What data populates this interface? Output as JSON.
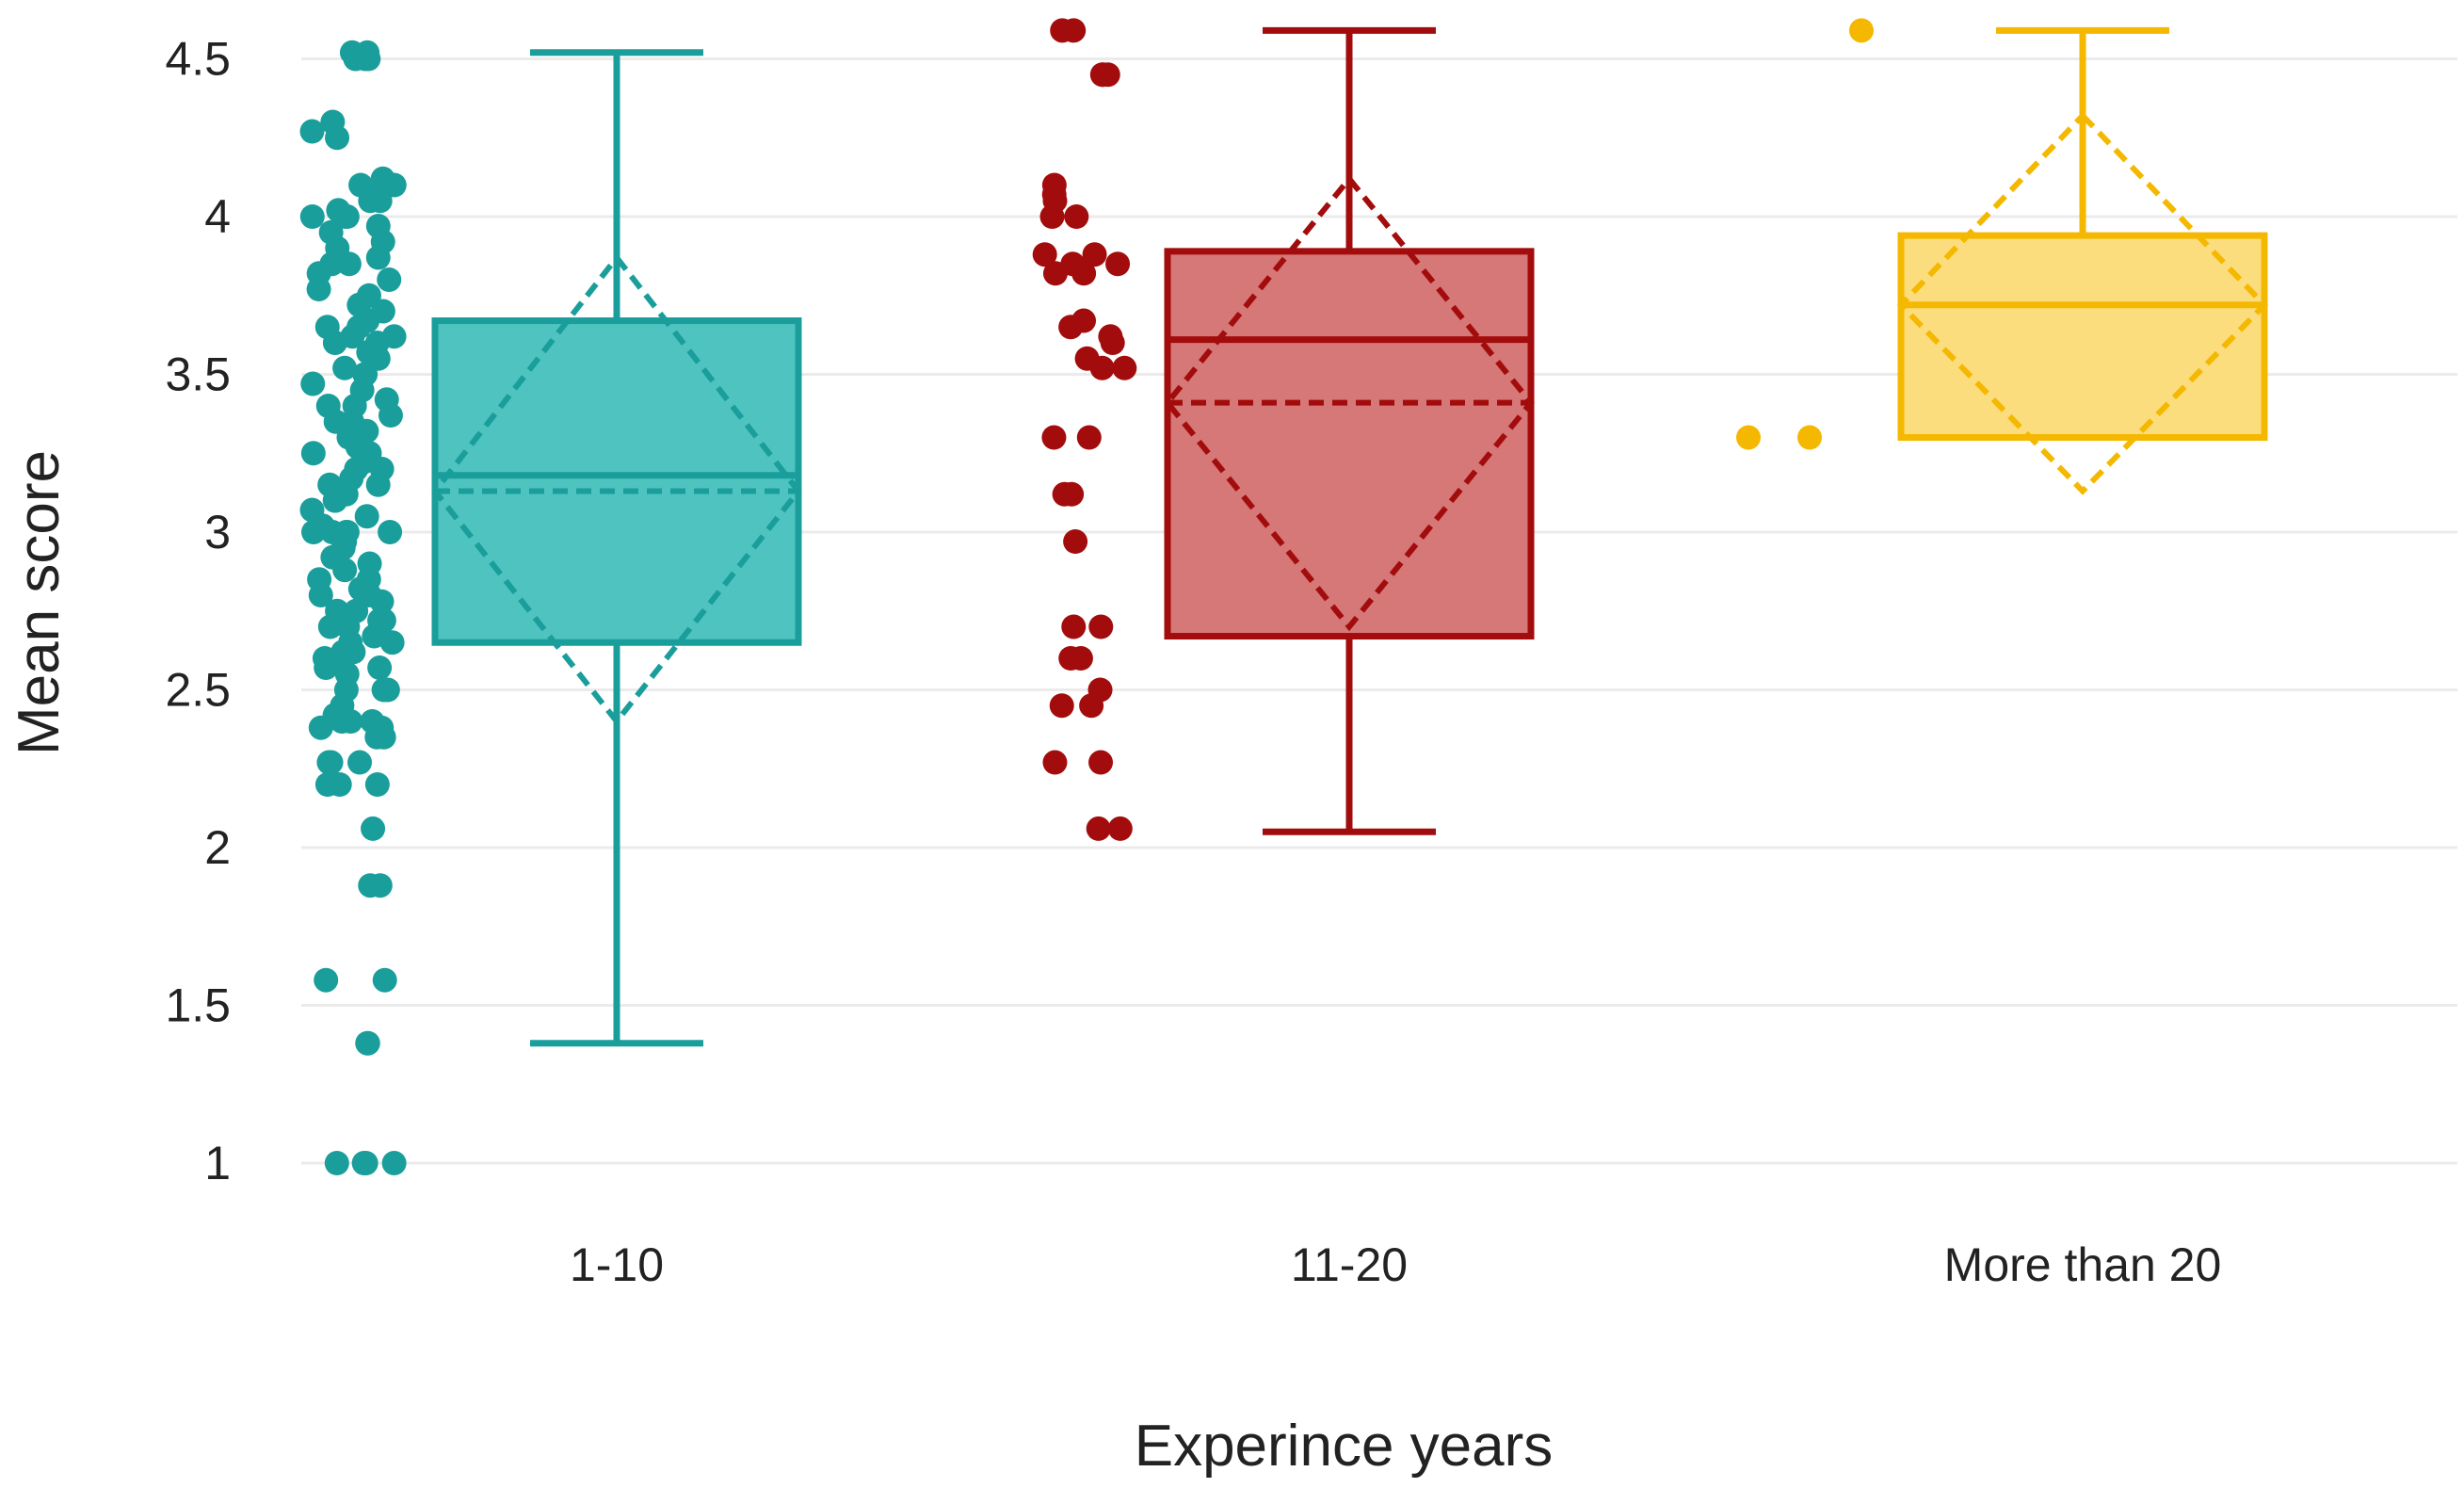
{
  "chart_data": {
    "type": "box",
    "title": "",
    "xlabel": "Experince years",
    "ylabel": "Mean score",
    "ylim": [
      0.85,
      4.6
    ],
    "yticks": [
      {
        "value": 1,
        "label": "1"
      },
      {
        "value": 1.5,
        "label": "1.5"
      },
      {
        "value": 2,
        "label": "2"
      },
      {
        "value": 2.5,
        "label": "2.5"
      },
      {
        "value": 3,
        "label": "3"
      },
      {
        "value": 3.5,
        "label": "3.5"
      },
      {
        "value": 4,
        "label": "4"
      },
      {
        "value": 4.5,
        "label": "4.5"
      }
    ],
    "grid": true,
    "legend": "none",
    "categories": [
      "1-10",
      "11-20",
      "More than 20"
    ],
    "groups": [
      {
        "name": "1-10",
        "color": "#1a9e9b",
        "fill": "#4fc3c0",
        "whisker_low": 1.38,
        "q1": 2.65,
        "median": 3.18,
        "q3": 3.67,
        "whisker_high": 4.52,
        "mean": 3.13,
        "mean_minus_sd": 2.4,
        "mean_plus_sd": 3.87,
        "points": [
          1.0,
          1.0,
          1.0,
          1.0,
          1.38,
          1.38,
          1.58,
          1.58,
          1.88,
          1.88,
          2.06,
          2.2,
          2.2,
          2.2,
          2.27,
          2.27,
          2.27,
          2.35,
          2.35,
          2.38,
          2.38,
          2.4,
          2.4,
          2.4,
          2.42,
          2.45,
          2.5,
          2.5,
          2.5,
          2.55,
          2.57,
          2.57,
          2.6,
          2.6,
          2.62,
          2.62,
          2.65,
          2.65,
          2.67,
          2.7,
          2.7,
          2.72,
          2.72,
          2.75,
          2.75,
          2.78,
          2.8,
          2.8,
          2.82,
          2.85,
          2.85,
          2.88,
          2.9,
          2.92,
          2.95,
          2.97,
          3.0,
          3.0,
          3.0,
          3.0,
          3.0,
          3.02,
          3.05,
          3.07,
          3.1,
          3.1,
          3.12,
          3.15,
          3.15,
          3.17,
          3.2,
          3.2,
          3.22,
          3.25,
          3.25,
          3.27,
          3.3,
          3.3,
          3.32,
          3.35,
          3.35,
          3.37,
          3.4,
          3.4,
          3.42,
          3.45,
          3.47,
          3.5,
          3.5,
          3.52,
          3.55,
          3.57,
          3.6,
          3.6,
          3.62,
          3.62,
          3.65,
          3.65,
          3.67,
          3.7,
          3.72,
          3.75,
          3.77,
          3.8,
          3.82,
          3.85,
          3.85,
          3.87,
          3.9,
          3.92,
          3.95,
          3.97,
          4.0,
          4.0,
          4.0,
          4.02,
          4.05,
          4.05,
          4.07,
          4.1,
          4.1,
          4.12,
          4.25,
          4.27,
          4.3,
          4.5,
          4.5,
          4.5,
          4.52,
          4.52
        ]
      },
      {
        "name": "11-20",
        "color": "#a30c0c",
        "fill": "#d67878",
        "whisker_low": 2.05,
        "q1": 2.67,
        "median": 3.61,
        "q3": 3.89,
        "whisker_high": 4.59,
        "mean": 3.41,
        "mean_minus_sd": 2.7,
        "mean_plus_sd": 4.12,
        "points": [
          2.06,
          2.06,
          2.27,
          2.27,
          2.45,
          2.45,
          2.5,
          2.6,
          2.6,
          2.7,
          2.7,
          2.97,
          3.12,
          3.12,
          3.3,
          3.3,
          3.52,
          3.52,
          3.55,
          3.6,
          3.62,
          3.65,
          3.67,
          3.82,
          3.82,
          3.85,
          3.85,
          3.88,
          3.88,
          4.0,
          4.0,
          4.05,
          4.07,
          4.1,
          4.45,
          4.45,
          4.45,
          4.59,
          4.59
        ]
      },
      {
        "name": "More than 20",
        "color": "#f5b800",
        "fill": "#fcdd7d",
        "whisker_low": 3.3,
        "q1": 3.3,
        "median": 3.72,
        "q3": 3.94,
        "whisker_high": 4.59,
        "mean": 3.72,
        "mean_minus_sd": 3.13,
        "mean_plus_sd": 4.32,
        "points": [
          3.3,
          3.3,
          4.59
        ]
      }
    ]
  }
}
